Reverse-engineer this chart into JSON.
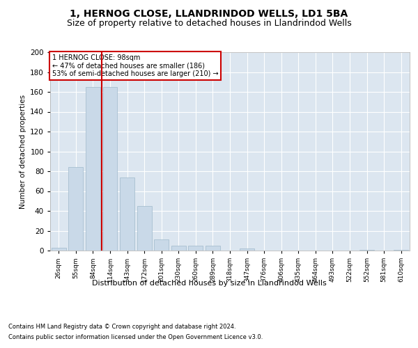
{
  "title": "1, HERNOG CLOSE, LLANDRINDOD WELLS, LD1 5BA",
  "subtitle": "Size of property relative to detached houses in Llandrindod Wells",
  "xlabel": "Distribution of detached houses by size in Llandrindod Wells",
  "ylabel": "Number of detached properties",
  "bar_labels": [
    "26sqm",
    "55sqm",
    "84sqm",
    "114sqm",
    "143sqm",
    "172sqm",
    "201sqm",
    "230sqm",
    "260sqm",
    "289sqm",
    "318sqm",
    "347sqm",
    "376sqm",
    "406sqm",
    "435sqm",
    "464sqm",
    "493sqm",
    "522sqm",
    "552sqm",
    "581sqm",
    "610sqm"
  ],
  "bar_values": [
    3,
    84,
    165,
    165,
    74,
    45,
    11,
    5,
    5,
    5,
    0,
    2,
    0,
    0,
    0,
    0,
    0,
    0,
    1,
    0,
    1
  ],
  "bar_color": "#c9d9e8",
  "bar_edge_color": "#a8bfd0",
  "annotation_text": "1 HERNOG CLOSE: 98sqm\n← 47% of detached houses are smaller (186)\n53% of semi-detached houses are larger (210) →",
  "annotation_box_color": "#ffffff",
  "annotation_box_edge": "#cc0000",
  "ylim": [
    0,
    200
  ],
  "yticks": [
    0,
    20,
    40,
    60,
    80,
    100,
    120,
    140,
    160,
    180,
    200
  ],
  "plot_bg_color": "#dce6f0",
  "footer_line1": "Contains HM Land Registry data © Crown copyright and database right 2024.",
  "footer_line2": "Contains public sector information licensed under the Open Government Licence v3.0.",
  "title_fontsize": 10,
  "subtitle_fontsize": 9
}
